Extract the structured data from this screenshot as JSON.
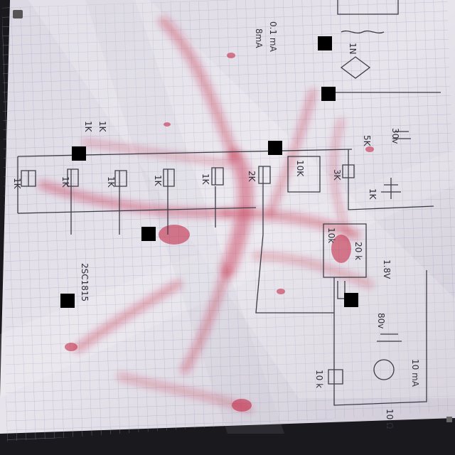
{
  "photo": {
    "labels": [
      {
        "text": "1K"
      },
      {
        "text": "1K"
      },
      {
        "text": "1K"
      },
      {
        "text": "1K"
      },
      {
        "text": "1K"
      },
      {
        "text": "2K"
      },
      {
        "text": "1K"
      },
      {
        "text": "1K"
      },
      {
        "text": "10K"
      },
      {
        "text": "3K"
      },
      {
        "text": "5K"
      },
      {
        "text": "1K"
      },
      {
        "text": "10k"
      },
      {
        "text": "10 k"
      },
      {
        "text": "10 mA"
      },
      {
        "text": "80v"
      },
      {
        "text": "30v"
      },
      {
        "text": "0.1 mA"
      },
      {
        "text": "1N"
      },
      {
        "text": "8mA"
      },
      {
        "text": "1.8V"
      },
      {
        "text": "20 k"
      },
      {
        "text": "10 Ω"
      },
      {
        "text": "2SC1815"
      }
    ]
  }
}
